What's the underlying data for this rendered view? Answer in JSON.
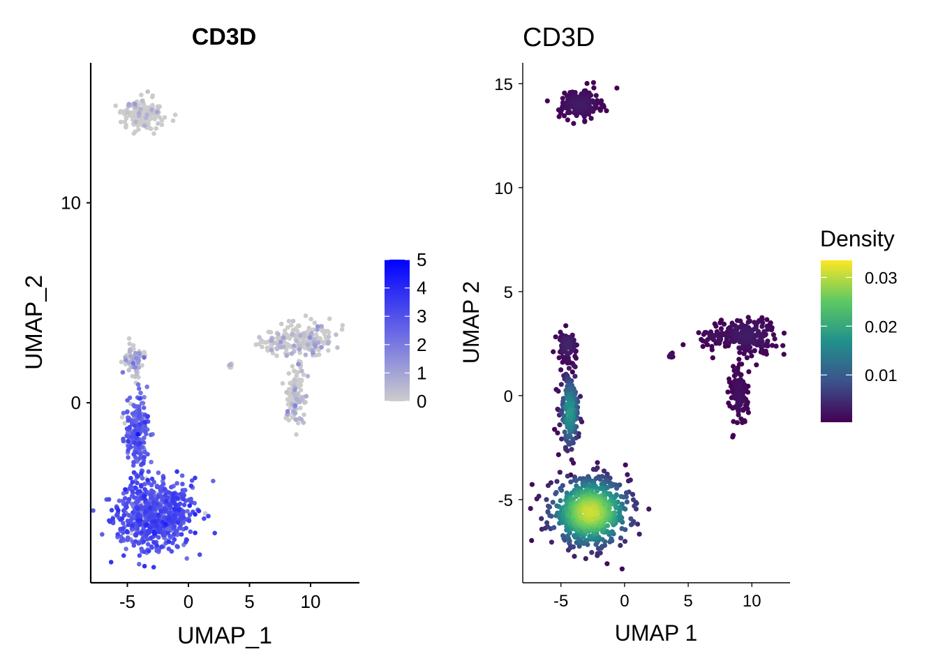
{
  "chart_data": [
    {
      "type": "scatter",
      "title": "CD3D",
      "xlabel": "UMAP_1",
      "ylabel": "UMAP_2",
      "xlim": [
        -8,
        14
      ],
      "ylim": [
        -9,
        17
      ],
      "xticks": [
        -5,
        0,
        5,
        10
      ],
      "xtick_labels": [
        "-5",
        "0",
        "5",
        "10"
      ],
      "yticks": [
        0,
        10
      ],
      "ytick_labels": [
        "0",
        "10"
      ],
      "grid": false,
      "legend": {
        "type": "colorbar",
        "placement": "right",
        "title": "",
        "range": [
          0,
          5
        ],
        "ticks": [
          0,
          1,
          2,
          3,
          4,
          5
        ],
        "tick_labels": [
          "0",
          "1",
          "2",
          "3",
          "4",
          "5"
        ],
        "colors": [
          "#cccccc",
          "#0000ff"
        ]
      },
      "clusters": [
        {
          "center": [
            -3.7,
            14.4
          ],
          "spread": [
            1.1,
            0.5
          ],
          "n": 150,
          "expr": 0.4,
          "shape": "blob"
        },
        {
          "center": [
            -2.8,
            -5.6
          ],
          "spread": [
            2.0,
            1.1
          ],
          "n": 650,
          "expr": 2.9,
          "shape": "blob"
        },
        {
          "center": [
            -4.2,
            -1.5
          ],
          "spread": [
            0.6,
            1.2
          ],
          "n": 180,
          "expr": 2.6,
          "shape": "blob"
        },
        {
          "center": [
            -4.5,
            2.2
          ],
          "spread": [
            0.5,
            0.5
          ],
          "n": 70,
          "expr": 0.8,
          "shape": "blob"
        },
        {
          "center": [
            9.5,
            3.2
          ],
          "spread": [
            1.4,
            0.5
          ],
          "n": 170,
          "expr": 0.5,
          "shape": "blob"
        },
        {
          "center": [
            8.8,
            0.5
          ],
          "spread": [
            0.5,
            0.9
          ],
          "n": 110,
          "expr": 0.5,
          "shape": "blob"
        },
        {
          "center": [
            7.2,
            3.0
          ],
          "spread": [
            0.9,
            0.3
          ],
          "n": 40,
          "expr": 0.6,
          "shape": "blob"
        },
        {
          "center": [
            3.5,
            1.9
          ],
          "spread": [
            0.15,
            0.15
          ],
          "n": 8,
          "expr": 0.6,
          "shape": "blob"
        }
      ]
    },
    {
      "type": "scatter",
      "title": "CD3D",
      "xlabel": "UMAP 1",
      "ylabel": "UMAP 2",
      "xlim": [
        -8,
        13
      ],
      "ylim": [
        -9,
        16
      ],
      "xticks": [
        -5,
        0,
        5,
        10
      ],
      "xtick_labels": [
        "-5",
        "0",
        "5",
        "10"
      ],
      "yticks": [
        -5,
        0,
        5,
        10,
        15
      ],
      "ytick_labels": [
        "-5",
        "0",
        "5",
        "10",
        "15"
      ],
      "grid": false,
      "legend": {
        "type": "colorbar",
        "placement": "right",
        "title": "Density",
        "range": [
          0.0003,
          0.0335
        ],
        "ticks": [
          0.01,
          0.02,
          0.03
        ],
        "tick_labels": [
          "0.01",
          "0.02",
          "0.03"
        ],
        "colors": [
          "#440154",
          "#3b528b",
          "#21918c",
          "#5ec962",
          "#fde725"
        ]
      },
      "clusters": [
        {
          "center": [
            -3.5,
            14.0
          ],
          "spread": [
            1.0,
            0.45
          ],
          "n": 170,
          "density": 0.003
        },
        {
          "center": [
            -2.7,
            -5.6
          ],
          "spread": [
            1.9,
            1.0
          ],
          "n": 700,
          "density": 0.031
        },
        {
          "center": [
            -4.3,
            -0.8
          ],
          "spread": [
            0.45,
            1.1
          ],
          "n": 190,
          "density": 0.018
        },
        {
          "center": [
            -4.5,
            2.4
          ],
          "spread": [
            0.5,
            0.45
          ],
          "n": 70,
          "density": 0.004
        },
        {
          "center": [
            9.6,
            2.9
          ],
          "spread": [
            1.4,
            0.55
          ],
          "n": 190,
          "density": 0.003
        },
        {
          "center": [
            9.0,
            0.0
          ],
          "spread": [
            0.45,
            0.9
          ],
          "n": 110,
          "density": 0.002
        },
        {
          "center": [
            7.2,
            2.8
          ],
          "spread": [
            0.9,
            0.3
          ],
          "n": 40,
          "density": 0.002
        },
        {
          "center": [
            3.6,
            1.9
          ],
          "spread": [
            0.12,
            0.12
          ],
          "n": 8,
          "density": 0.002
        }
      ]
    }
  ]
}
